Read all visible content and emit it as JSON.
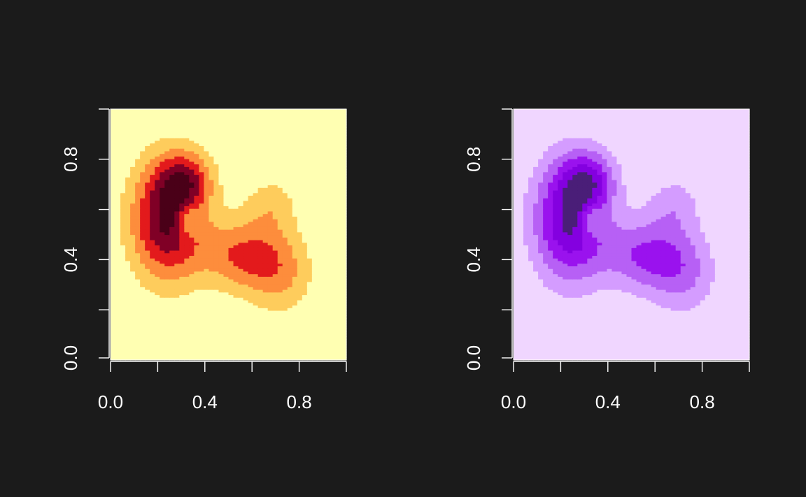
{
  "chart_data": [
    {
      "type": "heatmap",
      "title": "",
      "xlabel": "",
      "ylabel": "",
      "xlim": [
        0,
        1
      ],
      "ylim": [
        0,
        1
      ],
      "x_ticks": [
        0.0,
        0.2,
        0.4,
        0.6,
        0.8,
        1.0
      ],
      "y_ticks": [
        0.0,
        0.2,
        0.4,
        0.6,
        0.8,
        1.0
      ],
      "x_tick_labels": [
        {
          "value": 0.0,
          "label": "0.0"
        },
        {
          "value": 0.4,
          "label": "0.4"
        },
        {
          "value": 0.8,
          "label": "0.8"
        }
      ],
      "y_tick_labels": [
        {
          "value": 0.0,
          "label": "0.0"
        },
        {
          "value": 0.4,
          "label": "0.4"
        },
        {
          "value": 0.8,
          "label": "0.8"
        }
      ],
      "grid": false,
      "palette": [
        "#ffffb2",
        "#fecc5c",
        "#fd8d3c",
        "#e31a1c",
        "#800026",
        "#4a0018"
      ],
      "density_peaks": [
        {
          "x": 0.24,
          "y": 0.56,
          "spread_x": 0.11,
          "spread_y": 0.17,
          "weight": 1.0
        },
        {
          "x": 0.32,
          "y": 0.72,
          "spread_x": 0.08,
          "spread_y": 0.08,
          "weight": 0.55
        },
        {
          "x": 0.55,
          "y": 0.42,
          "spread_x": 0.12,
          "spread_y": 0.1,
          "weight": 0.55
        },
        {
          "x": 0.72,
          "y": 0.35,
          "spread_x": 0.1,
          "spread_y": 0.12,
          "weight": 0.4
        },
        {
          "x": 0.68,
          "y": 0.62,
          "spread_x": 0.08,
          "spread_y": 0.08,
          "weight": 0.28
        },
        {
          "x": 0.33,
          "y": 0.56,
          "spread_x": 0.035,
          "spread_y": 0.045,
          "weight": -0.4
        }
      ]
    },
    {
      "type": "heatmap",
      "title": "",
      "xlabel": "",
      "ylabel": "",
      "xlim": [
        0,
        1
      ],
      "ylim": [
        0,
        1
      ],
      "x_ticks": [
        0.0,
        0.2,
        0.4,
        0.6,
        0.8,
        1.0
      ],
      "y_ticks": [
        0.0,
        0.2,
        0.4,
        0.6,
        0.8,
        1.0
      ],
      "x_tick_labels": [
        {
          "value": 0.0,
          "label": "0.0"
        },
        {
          "value": 0.4,
          "label": "0.4"
        },
        {
          "value": 0.8,
          "label": "0.8"
        }
      ],
      "y_tick_labels": [
        {
          "value": 0.0,
          "label": "0.0"
        },
        {
          "value": 0.4,
          "label": "0.4"
        },
        {
          "value": 0.8,
          "label": "0.8"
        }
      ],
      "grid": false,
      "palette": [
        "#f0d6ff",
        "#d49cff",
        "#b760f5",
        "#9a12ee",
        "#8400e0",
        "#4a1e78"
      ],
      "density_peaks": [
        {
          "x": 0.24,
          "y": 0.56,
          "spread_x": 0.11,
          "spread_y": 0.17,
          "weight": 1.0
        },
        {
          "x": 0.32,
          "y": 0.72,
          "spread_x": 0.08,
          "spread_y": 0.08,
          "weight": 0.55
        },
        {
          "x": 0.55,
          "y": 0.42,
          "spread_x": 0.12,
          "spread_y": 0.1,
          "weight": 0.55
        },
        {
          "x": 0.72,
          "y": 0.35,
          "spread_x": 0.1,
          "spread_y": 0.12,
          "weight": 0.4
        },
        {
          "x": 0.68,
          "y": 0.62,
          "spread_x": 0.08,
          "spread_y": 0.08,
          "weight": 0.28
        },
        {
          "x": 0.33,
          "y": 0.56,
          "spread_x": 0.035,
          "spread_y": 0.045,
          "weight": -0.4
        }
      ]
    }
  ]
}
